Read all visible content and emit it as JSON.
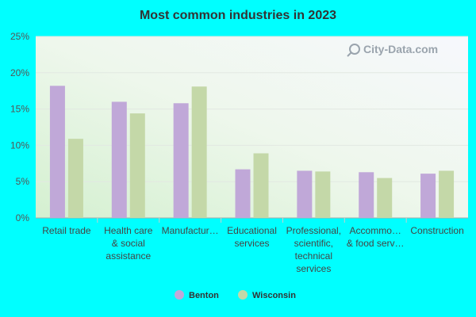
{
  "chart_data": {
    "type": "bar",
    "title": "Most common industries in 2023",
    "categories": [
      [
        "Retail trade"
      ],
      [
        "Health care",
        "& social",
        "assistance"
      ],
      [
        "Manufactur…"
      ],
      [
        "Educational",
        "services"
      ],
      [
        "Professional,",
        "scientific,",
        "technical",
        "services"
      ],
      [
        "Accommo…",
        "& food serv…"
      ],
      [
        "Construction"
      ]
    ],
    "series": [
      {
        "name": "Benton",
        "color": "#c0a8d8",
        "values": [
          18.2,
          16.0,
          15.8,
          6.7,
          6.5,
          6.3,
          6.1
        ]
      },
      {
        "name": "Wisconsin",
        "color": "#c4d8a8",
        "values": [
          10.9,
          14.4,
          18.1,
          8.9,
          6.4,
          5.5,
          6.5
        ]
      }
    ],
    "ylim": [
      0,
      25
    ],
    "yticks": [
      0,
      5,
      10,
      15,
      20,
      25
    ],
    "tick_suffix": "%",
    "legend_position": "bottom",
    "watermark": "City-Data.com"
  }
}
